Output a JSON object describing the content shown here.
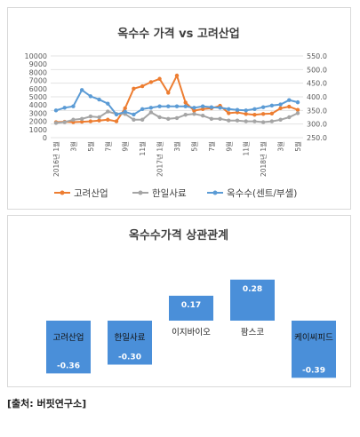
{
  "chart_data": [
    {
      "type": "line",
      "title": "옥수수 가격 vs 고려산업",
      "x": [
        "2016년 1월",
        "2016년 2월",
        "2016년 3월",
        "2016년 4월",
        "2016년 5월",
        "2016년 6월",
        "2016년 7월",
        "2016년 8월",
        "2016년 9월",
        "2016년 10월",
        "2016년 11월",
        "2016년 12월",
        "2017년 1월",
        "2017년 2월",
        "2017년 3월",
        "2017년 4월",
        "2017년 5월",
        "2017년 6월",
        "2017년 7월",
        "2017년 8월",
        "2017년 9월",
        "2017년 10월",
        "2017년 11월",
        "2017년 12월",
        "2018년 1월",
        "2018년 2월",
        "2018년 3월",
        "2018년 4월",
        "2018년 5월"
      ],
      "tick_labels": [
        "2016년 1월",
        "3월",
        "5월",
        "7월",
        "9월",
        "11월",
        "2017년 1월",
        "3월",
        "5월",
        "7월",
        "9월",
        "11월",
        "2018년 1월",
        "3월",
        "5월"
      ],
      "tick_indices": [
        0,
        2,
        4,
        6,
        8,
        10,
        12,
        14,
        16,
        18,
        20,
        22,
        24,
        26,
        28
      ],
      "y_left": {
        "ticks": [
          "0",
          "1000",
          "2000",
          "3000",
          "4000",
          "5000",
          "6000",
          "7000",
          "8000",
          "9000",
          "10000"
        ],
        "lim": [
          0,
          10000
        ]
      },
      "y_right": {
        "ticks": [
          "250.0",
          "300.0",
          "350.0",
          "400.0",
          "450.0",
          "500.0",
          "550.0"
        ],
        "lim": [
          250,
          550
        ]
      },
      "legend_position": "bottom",
      "grid": true,
      "series": [
        {
          "name": "고려산업",
          "axis": "left",
          "color": "#ed7d31",
          "values": [
            1900,
            1950,
            1900,
            1950,
            2000,
            2100,
            2200,
            2000,
            3600,
            6000,
            6300,
            6800,
            7200,
            5500,
            7600,
            4300,
            3300,
            3500,
            3600,
            3900,
            3000,
            3100,
            2900,
            2800,
            2900,
            2950,
            3600,
            3800,
            3400
          ]
        },
        {
          "name": "한일사료",
          "axis": "left",
          "color": "#a5a5a5",
          "values": [
            1800,
            1900,
            2200,
            2300,
            2600,
            2500,
            3200,
            2900,
            2900,
            2200,
            2200,
            3100,
            2500,
            2300,
            2400,
            2800,
            2900,
            2700,
            2300,
            2300,
            2100,
            2100,
            2000,
            2000,
            1900,
            2000,
            2200,
            2500,
            3000
          ]
        },
        {
          "name": "옥수수(센트/부셸)",
          "axis": "right",
          "color": "#5b9bd5",
          "values": [
            350,
            360,
            365,
            425,
            402,
            390,
            375,
            335,
            345,
            335,
            355,
            360,
            365,
            365,
            365,
            365,
            360,
            365,
            362,
            360,
            355,
            352,
            350,
            355,
            362,
            368,
            372,
            388,
            380
          ]
        }
      ]
    },
    {
      "type": "bar",
      "title": "옥수수가격 상관관계",
      "categories": [
        "고려산업",
        "한일사료",
        "이지바이오",
        "팜스코",
        "케이씨피드"
      ],
      "values": [
        -0.36,
        -0.3,
        0.17,
        0.28,
        -0.39
      ],
      "value_labels": [
        "-0.36",
        "-0.30",
        "0.17",
        "0.28",
        "-0.39"
      ],
      "bar_color": "#4a8fd9"
    }
  ],
  "source": "[출처: 버핏연구소]"
}
